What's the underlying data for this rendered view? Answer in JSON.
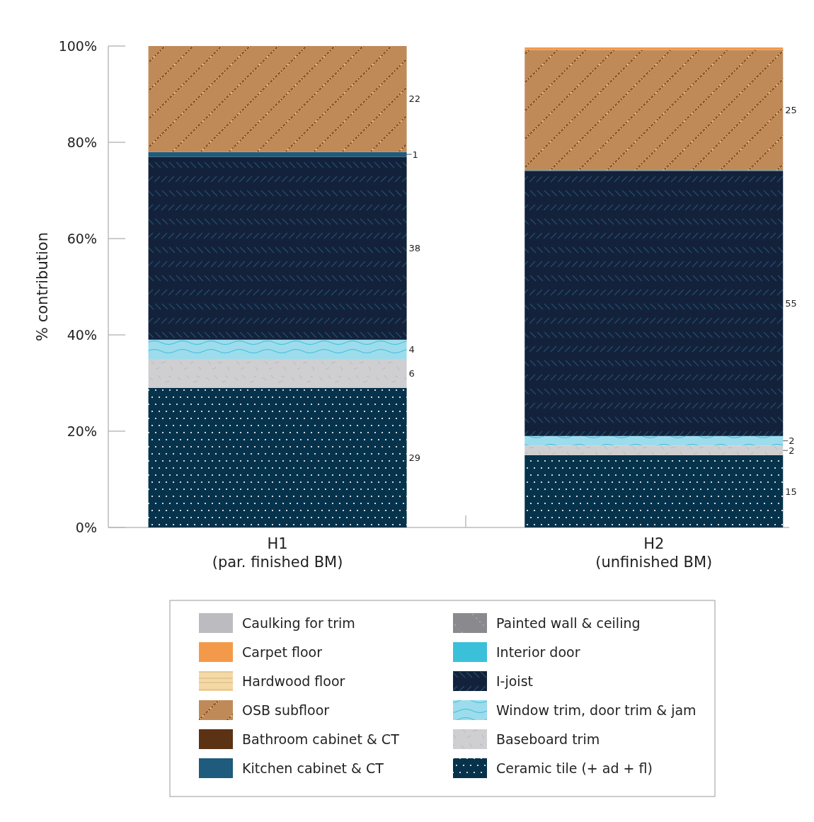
{
  "chart_data": {
    "type": "bar",
    "stacked": true,
    "ylabel": "% contribution",
    "categories": [
      "H1\n(par. finished BM)",
      "H2\n(unfinished BM)"
    ],
    "ylim": [
      0,
      100
    ],
    "yticks": [
      {
        "value": 0,
        "label": "0%"
      },
      {
        "value": 20,
        "label": "20%"
      },
      {
        "value": 40,
        "label": "40%"
      },
      {
        "value": 60,
        "label": "60%"
      },
      {
        "value": 80,
        "label": "80%"
      },
      {
        "value": 100,
        "label": "100%"
      }
    ],
    "grid": false,
    "legend": "bottom",
    "series": [
      {
        "name": "Caulking for trim",
        "color": "#bcbcc0",
        "values": [
          null,
          null
        ]
      },
      {
        "name": "Ceramic tile (+ ad + fl)",
        "color": "#06324b",
        "values": [
          29,
          15
        ],
        "value_labels": [
          "29",
          "15"
        ]
      },
      {
        "name": "Baseboard trim",
        "color": "#cfcfd2",
        "values": [
          6,
          2
        ],
        "value_labels": [
          "6",
          "2"
        ]
      },
      {
        "name": "Window trim, door trim & jam",
        "color": "#9ddcec",
        "values": [
          4,
          2
        ],
        "value_labels": [
          "4",
          "2"
        ]
      },
      {
        "name": "I-joist",
        "color": "#14213a",
        "values": [
          38,
          55
        ],
        "value_labels": [
          "38",
          "55"
        ]
      },
      {
        "name": "Kitchen cabinet & CT",
        "color": "#1e5b7d",
        "values": [
          1,
          0.2
        ],
        "value_labels": [
          "1",
          null
        ]
      },
      {
        "name": "OSB subfloor",
        "color": "#c08a58",
        "values": [
          22,
          25
        ],
        "value_labels": [
          "22",
          "25"
        ]
      },
      {
        "name": "Carpet floor",
        "color": "#f39a4a",
        "values": [
          null,
          0.5
        ],
        "value_labels": [
          null,
          null
        ]
      },
      {
        "name": "Hardwood floor",
        "color": "#f3d9a6",
        "values": [
          null,
          null
        ]
      },
      {
        "name": "Bathroom cabinet & CT",
        "color": "#5c3214",
        "values": [
          null,
          null
        ]
      },
      {
        "name": "Painted wall & ceiling",
        "color": "#8a8a8e",
        "values": [
          null,
          null
        ]
      },
      {
        "name": "Interior door",
        "color": "#3bc0da",
        "values": [
          null,
          null
        ]
      }
    ]
  }
}
